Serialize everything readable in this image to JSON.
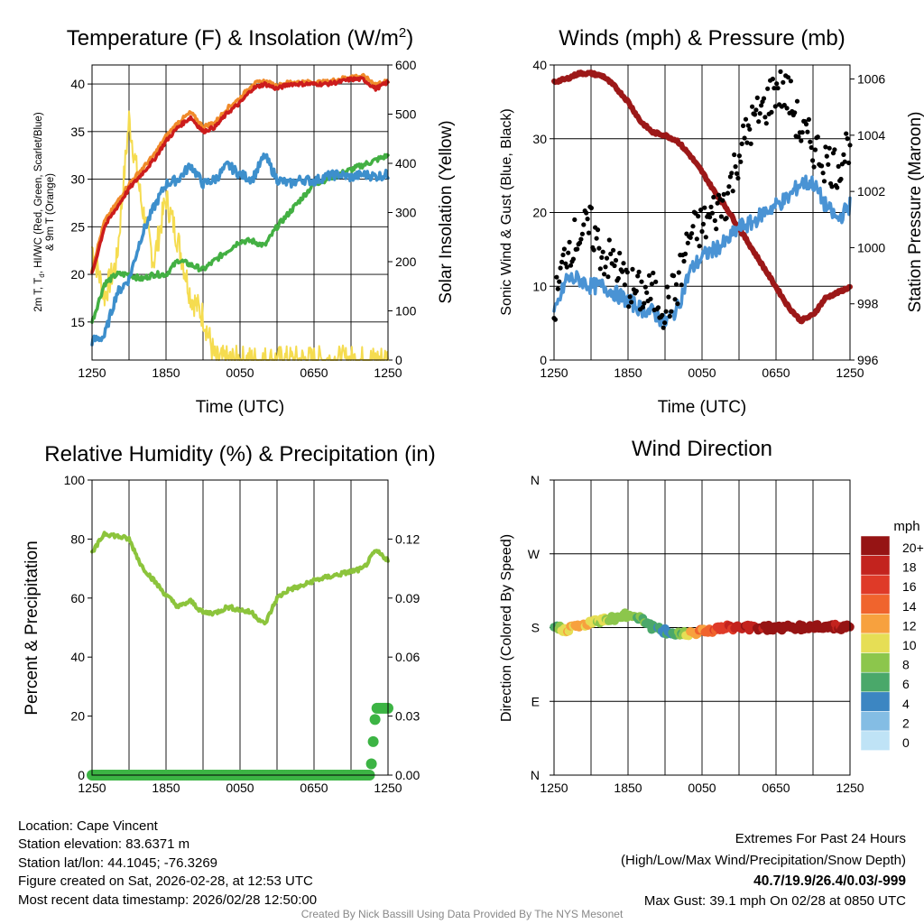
{
  "colors": {
    "temp": "#cc1c1c",
    "temp9m": "#f08a2a",
    "dew": "#3d8fcc",
    "heat": "#43b043",
    "solar": "#f5dc50",
    "pressure": "#9c1818",
    "wind": "#4a93d4",
    "gust": "#000000",
    "rh": "#8cc43c",
    "precip": "#3cb444",
    "extremes": "#cc2222"
  },
  "time_ticks": [
    "1250",
    "1850",
    "0050",
    "0650",
    "1250"
  ],
  "chart_data": [
    {
      "type": "line",
      "title": "Temperature (F) & Insolation (W/m²)",
      "title_main": "Temperature (F) & Insolation (W/m",
      "title_sup": "2",
      "title_end": ")",
      "xlabel": "Time (UTC)",
      "ylabel_line1": "2m T, Td, HI/WC (Red, Green, Scarlet/Blue)",
      "ylabel_line2": "& 9m T (Orange)",
      "ylabel_right": "Solar Insolation (Yellow)",
      "ylim": [
        11,
        42
      ],
      "y_ticks": [
        15,
        20,
        25,
        30,
        35,
        40
      ],
      "y2lim": [
        0,
        600
      ],
      "y2_ticks": [
        0,
        100,
        200,
        300,
        400,
        500,
        600
      ],
      "x_hours": [
        0,
        1,
        2,
        3,
        4,
        5,
        6,
        7,
        8,
        9,
        10,
        11,
        12,
        13,
        14,
        15,
        16,
        17,
        18,
        19,
        20,
        21,
        22,
        23,
        24
      ],
      "series": [
        {
          "name": "2m T",
          "values": [
            20,
            25,
            27,
            29,
            30.5,
            32,
            34,
            35.5,
            36.5,
            35,
            35.5,
            37,
            38,
            39.5,
            40,
            39.5,
            40,
            40,
            40,
            40,
            40.2,
            40.5,
            40.5,
            39.5,
            40.2
          ]
        },
        {
          "name": "9m T",
          "values": [
            20.5,
            25.5,
            27.5,
            29.5,
            31,
            32.5,
            34.5,
            36,
            37,
            35.5,
            36,
            37.5,
            38.5,
            40,
            40.3,
            39.8,
            40.2,
            40.2,
            40.2,
            40.2,
            40.5,
            40.8,
            40.8,
            40,
            40.3
          ]
        },
        {
          "name": "HI/WC",
          "values": [
            13,
            13.5,
            18,
            19.5,
            24,
            27,
            29.5,
            30,
            31.5,
            29.5,
            30,
            31.5,
            30.5,
            30,
            32.5,
            30,
            29.5,
            30,
            29.8,
            30.3,
            30.5,
            30.2,
            30.5,
            30.3,
            30.5
          ]
        },
        {
          "name": "Td",
          "values": [
            15,
            19,
            20,
            20,
            19.5,
            20,
            20,
            21.5,
            21,
            20.5,
            21.5,
            22.5,
            23.5,
            23.5,
            23,
            25,
            26.5,
            28,
            29.5,
            30,
            30.5,
            31,
            31.5,
            32,
            32.5
          ]
        },
        {
          "name": "Solar",
          "values": [
            230,
            130,
            200,
            490,
            320,
            200,
            330,
            240,
            130,
            90,
            0,
            0,
            0,
            0,
            0,
            0,
            0,
            0,
            0,
            0,
            0,
            0,
            0,
            0,
            3
          ]
        }
      ]
    },
    {
      "type": "line",
      "title": "Winds (mph) & Pressure (mb)",
      "xlabel": "Time (UTC)",
      "ylabel": "Sonic Wind & Gust (Blue, Black)",
      "ylabel_right": "Station Pressure (Maroon)",
      "ylim": [
        0,
        40
      ],
      "y_ticks": [
        0,
        10,
        20,
        30,
        40
      ],
      "y2lim": [
        996,
        1006.5
      ],
      "y2_ticks": [
        996,
        998,
        1000,
        1002,
        1004,
        1006
      ],
      "x_hours": [
        0,
        1,
        2,
        3,
        4,
        5,
        6,
        7,
        8,
        9,
        10,
        11,
        12,
        13,
        14,
        15,
        16,
        17,
        18,
        19,
        20,
        21,
        22,
        23,
        24
      ],
      "series": [
        {
          "name": "Wind",
          "values": [
            6,
            11,
            11,
            10,
            10,
            9,
            8,
            7,
            6.5,
            5,
            7,
            12,
            14,
            15,
            16,
            18,
            18.5,
            20,
            21,
            22,
            24,
            24,
            21,
            19,
            21
          ]
        },
        {
          "name": "Gust",
          "values": [
            7,
            15,
            17,
            18,
            14,
            13,
            10,
            9,
            9,
            7,
            10,
            17,
            18,
            20,
            22,
            28,
            32,
            34,
            37,
            36,
            31,
            29,
            27,
            26,
            30
          ]
        },
        {
          "name": "Pressure",
          "values": [
            1005.9,
            1006,
            1006.2,
            1006.2,
            1006.1,
            1005.7,
            1005.2,
            1004.5,
            1004.1,
            1004.0,
            1003.8,
            1003.3,
            1002.7,
            1002.0,
            1001.4,
            1000.7,
            1000.0,
            999.3,
            998.6,
            997.9,
            997.4,
            997.6,
            998.2,
            998.4,
            998.6
          ]
        }
      ]
    },
    {
      "type": "line",
      "title": "Relative Humidity (%) & Precipitation (in)",
      "xlabel": "",
      "ylabel": "Percent & Precipitation",
      "ylim": [
        0,
        100
      ],
      "y_ticks": [
        0,
        20,
        40,
        60,
        80,
        100
      ],
      "y2_ticks": [
        "0.00",
        "0.03",
        "0.06",
        "0.09",
        "0.12"
      ],
      "y2lim": [
        0,
        0.15
      ],
      "x_hours": [
        0,
        1,
        2,
        3,
        4,
        5,
        6,
        7,
        8,
        9,
        10,
        11,
        12,
        13,
        14,
        15,
        16,
        17,
        18,
        19,
        20,
        21,
        22,
        23,
        24
      ],
      "series": [
        {
          "name": "RH",
          "values": [
            75,
            82,
            81,
            80,
            71,
            66,
            61,
            57,
            59,
            55,
            55,
            57,
            56,
            55,
            51,
            60,
            63,
            64,
            66,
            67,
            68,
            69,
            70,
            76,
            73
          ]
        },
        {
          "name": "Precip",
          "values": [
            0,
            0,
            0,
            0,
            0,
            0,
            0,
            0,
            0,
            0,
            0,
            0,
            0,
            0,
            0,
            0,
            0,
            0,
            0,
            0,
            0,
            0,
            0,
            0.034,
            0.034
          ]
        }
      ]
    },
    {
      "type": "scatter",
      "title": "Wind Direction",
      "xlabel": "",
      "ylabel": "Direction (Colored By Speed)",
      "y_ticks": [
        "N",
        "E",
        "S",
        "W",
        "N"
      ],
      "ylim": [
        0,
        360
      ],
      "x_hours": [
        0,
        1,
        2,
        3,
        4,
        5,
        6,
        7,
        8,
        9,
        10,
        11,
        12,
        13,
        14,
        15,
        16,
        17,
        18,
        19,
        20,
        21,
        22,
        23,
        24
      ],
      "direction_deg": [
        180,
        178,
        182,
        185,
        190,
        192,
        195,
        193,
        180,
        175,
        172,
        174,
        176,
        178,
        180,
        180,
        180,
        180,
        180,
        180,
        180,
        181,
        182,
        180,
        180
      ],
      "speed_mph": [
        6,
        11,
        12,
        10,
        9,
        8,
        8,
        7,
        6,
        5,
        6,
        11,
        13,
        15,
        16,
        18,
        19,
        20,
        21,
        22,
        24,
        23,
        21,
        19,
        21
      ],
      "legend_title": "mph",
      "legend_labels": [
        "20+",
        "18",
        "16",
        "14",
        "12",
        "10",
        "8",
        "6",
        "4",
        "2",
        "0"
      ],
      "legend_colors": [
        "#961414",
        "#c3231e",
        "#df3a28",
        "#f0642d",
        "#f7a13e",
        "#e6de55",
        "#8cc64c",
        "#4aa86a",
        "#3c86c2",
        "#84bde4",
        "#bfe3f6"
      ]
    }
  ],
  "station": {
    "location": "Location: Cape Vincent",
    "elevation": "Station elevation: 83.6371 m",
    "latlon": "Station lat/lon: 44.1045; -76.3269",
    "created": "Figure created on Sat, 2026-02-28, at 12:53 UTC",
    "recent": "Most recent data timestamp: 2026/02/28 12:50:00"
  },
  "extremes": {
    "title": "Extremes For Past 24 Hours",
    "subtitle": "(High/Low/Max Wind/Precipitation/Snow Depth)",
    "values": "40.7/19.9/26.4/0.03/-999",
    "gust": "Max Gust: 39.1 mph On 02/28 at 0850 UTC"
  },
  "credit": "Created By Nick Bassill Using Data Provided By The NYS Mesonet"
}
